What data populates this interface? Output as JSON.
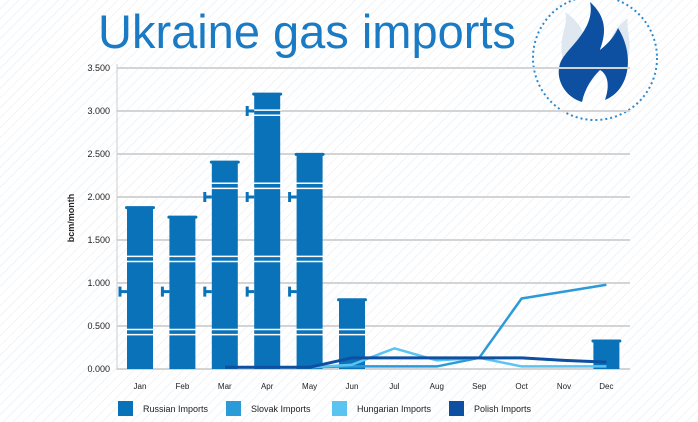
{
  "chart_data": {
    "type": "bar+line",
    "title": "Ukraine gas imports",
    "ylabel": "bcm/month",
    "xlabel": "",
    "ylim": [
      0,
      3.5
    ],
    "yticks": [
      "0.000",
      "0.500",
      "1.000",
      "1.500",
      "2.000",
      "2.500",
      "3.000",
      "3.500"
    ],
    "categories": [
      "Jan",
      "Feb",
      "Mar",
      "Apr",
      "May",
      "Jun",
      "Jul",
      "Aug",
      "Sep",
      "Oct",
      "Nov",
      "Dec"
    ],
    "series": [
      {
        "name": "Russian Imports",
        "kind": "bar",
        "color": "#0a72b8",
        "values": [
          1.87,
          1.76,
          2.4,
          3.19,
          2.49,
          0.8,
          0,
          0,
          0,
          0,
          0,
          0.32
        ]
      },
      {
        "name": "Slovak Imports",
        "kind": "line",
        "color": "#2b9ad8",
        "values": [
          null,
          null,
          0.02,
          0.02,
          0.02,
          0.03,
          0.03,
          0.03,
          0.13,
          0.82,
          0.9,
          0.98
        ]
      },
      {
        "name": "Hungarian Imports",
        "kind": "line",
        "color": "#5bc3f0",
        "values": [
          null,
          null,
          0.02,
          0.02,
          0.02,
          0.05,
          0.24,
          0.1,
          0.13,
          0.03,
          0.03,
          0.03
        ]
      },
      {
        "name": "Polish Imports",
        "kind": "line",
        "color": "#0d4fa0",
        "values": [
          null,
          null,
          0.02,
          0.02,
          0.02,
          0.13,
          0.13,
          0.13,
          0.13,
          0.13,
          0.1,
          0.08
        ]
      }
    ],
    "legend_position": "bottom",
    "grid": true
  }
}
